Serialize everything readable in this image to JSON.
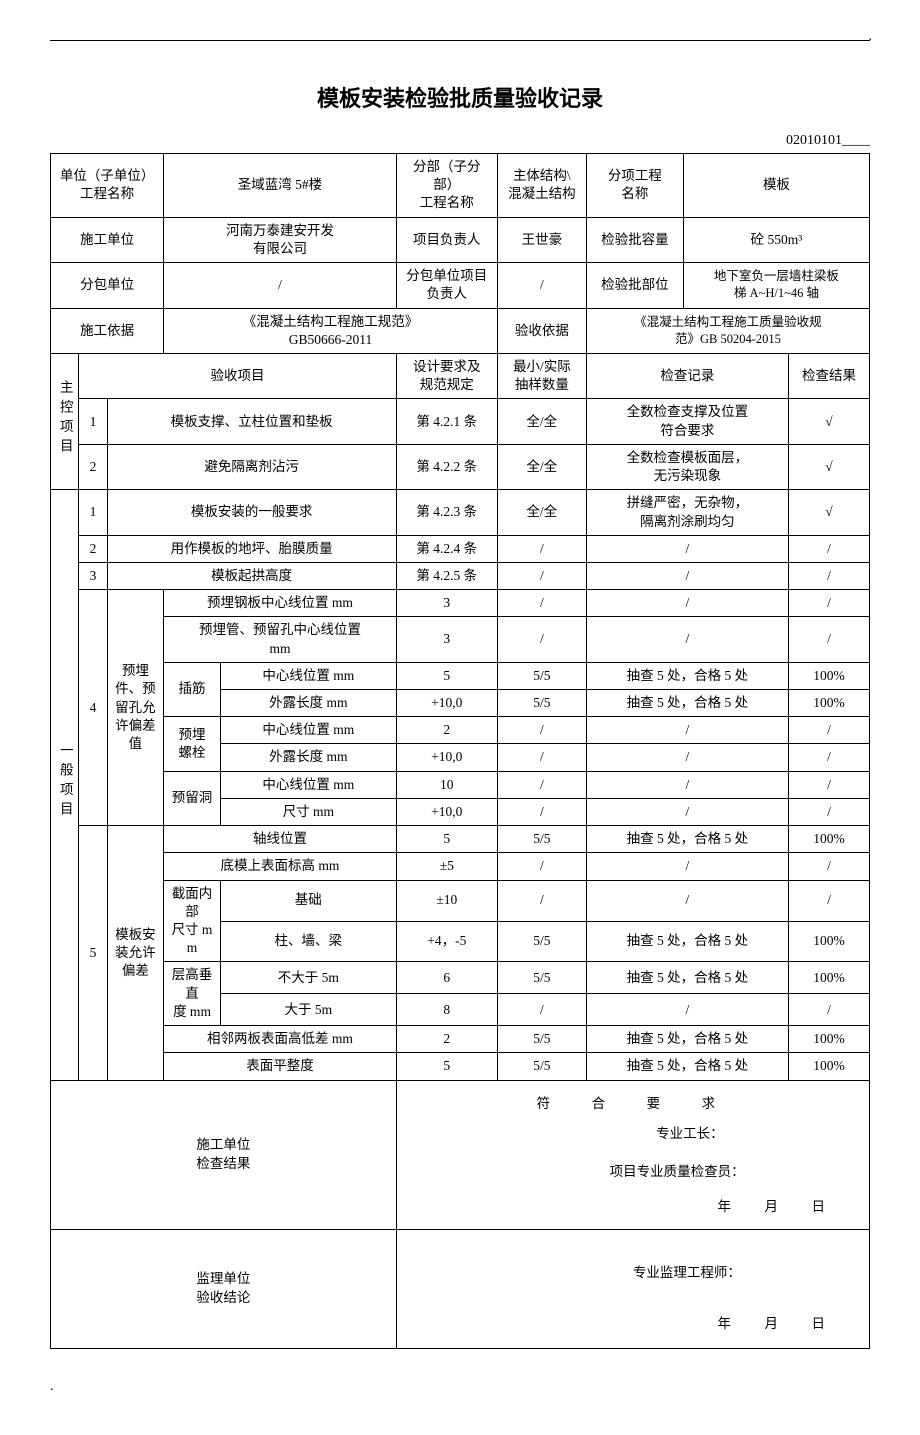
{
  "title": "模板安装检验批质量验收记录",
  "doc_code": "02010101____",
  "header": {
    "unit_label": "单位（子单位）\n工程名称",
    "unit_value": "圣域蓝湾 5#楼",
    "subpart_label": "分部（子分部）\n工程名称",
    "subpart_value": "主体结构\\\n混凝土结构",
    "subitem_label": "分项工程\n名称",
    "subitem_value": "模板",
    "contractor_label": "施工单位",
    "contractor_value": "河南万泰建安开发\n有限公司",
    "pm_label": "项目负责人",
    "pm_value": "王世豪",
    "capacity_label": "检验批容量",
    "capacity_value": "砼 550m³",
    "subcon_label": "分包单位",
    "subcon_value": "/",
    "subcon_pm_label": "分包单位项目\n负责人",
    "subcon_pm_value": "/",
    "batch_loc_label": "检验批部位",
    "batch_loc_value": "地下室负一层墙柱梁板\n梯 A~H/1~46 轴",
    "basis_label": "施工依据",
    "basis_value": "《混凝土结构工程施工规范》\nGB50666-2011",
    "accept_basis_label": "验收依据",
    "accept_basis_value": "《混凝土结构工程施工质量验收规\n范》GB 50204-2015"
  },
  "col_headers": {
    "item": "验收项目",
    "design": "设计要求及\n规范规定",
    "sample": "最小/实际\n抽样数量",
    "record": "检查记录",
    "result": "检查结果"
  },
  "main_ctrl_label": "主控项目",
  "general_label": "一般项目",
  "mc": [
    {
      "no": "1",
      "item": "模板支撑、立柱位置和垫板",
      "design": "第 4.2.1 条",
      "sample": "全/全",
      "record": "全数检查支撑及位置\n符合要求",
      "result": "√"
    },
    {
      "no": "2",
      "item": "避免隔离剂沾污",
      "design": "第 4.2.2 条",
      "sample": "全/全",
      "record": "全数检查模板面层，\n无污染现象",
      "result": "√"
    }
  ],
  "g": [
    {
      "no": "1",
      "item": "模板安装的一般要求",
      "design": "第 4.2.3 条",
      "sample": "全/全",
      "record": "拼缝严密，无杂物，\n隔离剂涂刷均匀",
      "result": "√"
    },
    {
      "no": "2",
      "item": "用作模板的地坪、胎膜质量",
      "design": "第 4.2.4 条",
      "sample": "/",
      "record": "/",
      "result": "/"
    },
    {
      "no": "3",
      "item": "模板起拱高度",
      "design": "第 4.2.5 条",
      "sample": "/",
      "record": "/",
      "result": "/"
    }
  ],
  "g4": {
    "no": "4",
    "group": "预埋件、预留孔允许偏差值",
    "rows": [
      {
        "sub": "预埋钢板中心线位置 mm",
        "design": "3",
        "sample": "/",
        "record": "/",
        "result": "/"
      },
      {
        "sub": "预埋管、预留孔中心线位置\nmm",
        "design": "3",
        "sample": "/",
        "record": "/",
        "result": "/"
      }
    ],
    "chajin_label": "插筋",
    "chajin": [
      {
        "sub": "中心线位置 mm",
        "design": "5",
        "sample": "5/5",
        "record": "抽查 5 处，合格 5 处",
        "result": "100%"
      },
      {
        "sub": "外露长度 mm",
        "design": "+10,0",
        "sample": "5/5",
        "record": "抽查 5 处，合格 5 处",
        "result": "100%"
      }
    ],
    "luoshuan_label": "预埋\n螺栓",
    "luoshuan": [
      {
        "sub": "中心线位置 mm",
        "design": "2",
        "sample": "/",
        "record": "/",
        "result": "/"
      },
      {
        "sub": "外露长度 mm",
        "design": "+10,0",
        "sample": "/",
        "record": "/",
        "result": "/"
      }
    ],
    "yuliu_label": "预留洞",
    "yuliu": [
      {
        "sub": "中心线位置 mm",
        "design": "10",
        "sample": "/",
        "record": "/",
        "result": "/"
      },
      {
        "sub": "尺寸 mm",
        "design": "+10,0",
        "sample": "/",
        "record": "/",
        "result": "/"
      }
    ]
  },
  "g5": {
    "no": "5",
    "group": "模板安装允许偏差",
    "rows_top": [
      {
        "sub": "轴线位置",
        "design": "5",
        "sample": "5/5",
        "record": "抽查 5 处，合格 5 处",
        "result": "100%"
      },
      {
        "sub": "底模上表面标高 mm",
        "design": "±5",
        "sample": "/",
        "record": "/",
        "result": "/"
      }
    ],
    "jm_label": "截面内部\n尺寸 mm",
    "jm": [
      {
        "sub": "基础",
        "design": "±10",
        "sample": "/",
        "record": "/",
        "result": "/"
      },
      {
        "sub": "柱、墙、梁",
        "design": "+4，-5",
        "sample": "5/5",
        "record": "抽查 5 处，合格 5 处",
        "result": "100%"
      }
    ],
    "cg_label": "层高垂直\n度 mm",
    "cg": [
      {
        "sub": "不大于 5m",
        "design": "6",
        "sample": "5/5",
        "record": "抽查 5 处，合格 5 处",
        "result": "100%"
      },
      {
        "sub": "大于 5m",
        "design": "8",
        "sample": "/",
        "record": "/",
        "result": "/"
      }
    ],
    "rows_bot": [
      {
        "sub": "相邻两板表面高低差 mm",
        "design": "2",
        "sample": "5/5",
        "record": "抽查 5 处，合格 5 处",
        "result": "100%"
      },
      {
        "sub": "表面平整度",
        "design": "5",
        "sample": "5/5",
        "record": "抽查 5 处，合格 5 处",
        "result": "100%"
      }
    ]
  },
  "sig": {
    "contractor_check_label": "施工单位\n检查结果",
    "conform": "符　合　要　求",
    "foreman": "专业工长：",
    "inspector": "项目专业质量检查员：",
    "date": "年　月　日",
    "supervisor_label": "监理单位\n验收结论",
    "supervisor": "专业监理工程师：",
    "date2": "年　月　日"
  }
}
